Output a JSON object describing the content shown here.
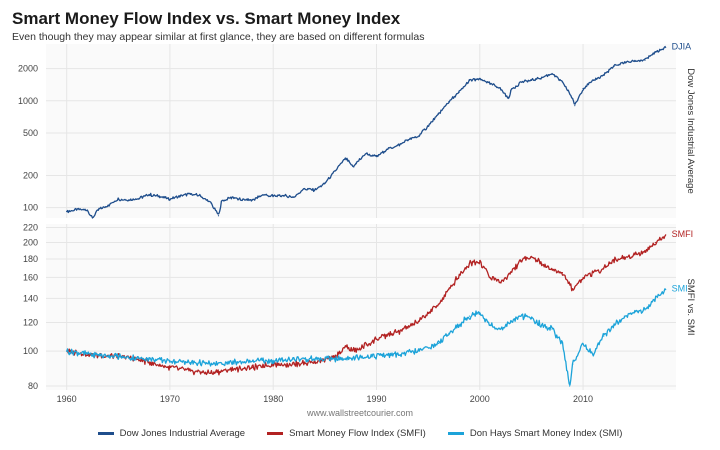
{
  "header": {
    "title": "Smart Money Flow Index vs. Smart Money Index",
    "subtitle": "Even though they may appear similar at first glance, they are based on different formulas"
  },
  "source": "www.wallstreetcourier.com",
  "colors": {
    "djia": "#1f4e8c",
    "smfi": "#b22222",
    "smi": "#1ca3d9",
    "panel_bg": "#ffffff",
    "grid": "#e6e6e6"
  },
  "chart_data": [
    {
      "type": "line",
      "panel_label": "Dow Jones Industrial Average",
      "y_scale": "log",
      "ylim": [
        80,
        3400
      ],
      "yticks": [
        100,
        200,
        500,
        1000,
        2000
      ],
      "ytick_labels": [
        "100",
        "200",
        "500",
        "1000",
        "2000"
      ],
      "xlim": [
        1958,
        2019
      ],
      "series": [
        {
          "name": "Dow Jones Industrial Average",
          "end_label": "DJIA",
          "x": [
            1960,
            1961,
            1962,
            1962.5,
            1963,
            1964,
            1965,
            1966,
            1967,
            1968,
            1969,
            1970,
            1971,
            1972,
            1973,
            1974,
            1974.7,
            1975,
            1976,
            1977,
            1978,
            1979,
            1980,
            1981,
            1982,
            1983,
            1984,
            1985,
            1986,
            1987,
            1987.8,
            1988,
            1989,
            1990,
            1991,
            1992,
            1993,
            1994,
            1995,
            1996,
            1997,
            1998,
            1999,
            2000,
            2001,
            2002,
            2002.8,
            2003,
            2004,
            2005,
            2006,
            2007,
            2008,
            2009,
            2009.2,
            2010,
            2011,
            2012,
            2013,
            2014,
            2015,
            2016,
            2017,
            2018
          ],
          "values": [
            92,
            96,
            95,
            80,
            95,
            105,
            120,
            118,
            122,
            132,
            128,
            120,
            128,
            135,
            128,
            110,
            84,
            115,
            125,
            118,
            118,
            132,
            128,
            130,
            125,
            150,
            145,
            170,
            220,
            290,
            240,
            260,
            320,
            300,
            350,
            380,
            430,
            460,
            580,
            750,
            980,
            1200,
            1550,
            1600,
            1450,
            1300,
            1050,
            1250,
            1500,
            1550,
            1650,
            1800,
            1500,
            1050,
            900,
            1300,
            1550,
            1750,
            2100,
            2300,
            2350,
            2400,
            2850,
            3150
          ]
        }
      ]
    },
    {
      "type": "line",
      "panel_label": "SMFI vs. SMI",
      "y_scale": "log",
      "ylim": [
        78,
        225
      ],
      "yticks": [
        80,
        100,
        120,
        140,
        160,
        180,
        200,
        220
      ],
      "ytick_labels": [
        "80",
        "100",
        "120",
        "140",
        "160",
        "180",
        "200",
        "220"
      ],
      "xlim": [
        1958,
        2019
      ],
      "xticks": [
        1960,
        1970,
        1980,
        1990,
        2000,
        2010
      ],
      "xtick_labels": [
        "1960",
        "1970",
        "1980",
        "1990",
        "2000",
        "2010"
      ],
      "series": [
        {
          "name": "Smart Money Flow Index (SMFI)",
          "end_label": "SMFI",
          "x": [
            1960,
            1962,
            1964,
            1966,
            1968,
            1970,
            1972,
            1974,
            1976,
            1978,
            1980,
            1982,
            1984,
            1985,
            1986,
            1987,
            1988,
            1989,
            1990,
            1992,
            1994,
            1996,
            1997,
            1998,
            1999,
            2000,
            2001,
            2002,
            2003,
            2004,
            2005,
            2006,
            2007,
            2008,
            2009,
            2010,
            2011,
            2012,
            2013,
            2014,
            2015,
            2016,
            2017,
            2018
          ],
          "values": [
            100,
            98,
            97,
            96,
            93,
            90,
            88,
            87,
            89,
            90,
            92,
            92,
            93,
            95,
            96,
            103,
            100,
            104,
            108,
            113,
            120,
            135,
            148,
            162,
            175,
            178,
            160,
            155,
            165,
            178,
            183,
            175,
            168,
            165,
            148,
            160,
            165,
            170,
            178,
            182,
            185,
            188,
            200,
            210
          ]
        },
        {
          "name": "Don Hays Smart Money Index (SMI)",
          "end_label": "SMI",
          "x": [
            1960,
            1962,
            1964,
            1966,
            1968,
            1970,
            1972,
            1974,
            1976,
            1978,
            1980,
            1982,
            1984,
            1986,
            1988,
            1990,
            1992,
            1994,
            1996,
            1997,
            1998,
            1999,
            2000,
            2001,
            2002,
            2003,
            2004,
            2005,
            2006,
            2007,
            2008,
            2008.7,
            2009,
            2010,
            2011,
            2012,
            2013,
            2014,
            2015,
            2016,
            2017,
            2018
          ],
          "values": [
            100,
            98,
            97,
            96,
            95,
            94,
            93,
            92,
            93,
            94,
            94,
            95,
            95,
            95,
            96,
            97,
            98,
            100,
            105,
            112,
            118,
            125,
            128,
            118,
            115,
            120,
            125,
            123,
            118,
            115,
            105,
            80,
            92,
            105,
            98,
            110,
            118,
            125,
            128,
            130,
            140,
            148
          ]
        }
      ]
    }
  ]
}
